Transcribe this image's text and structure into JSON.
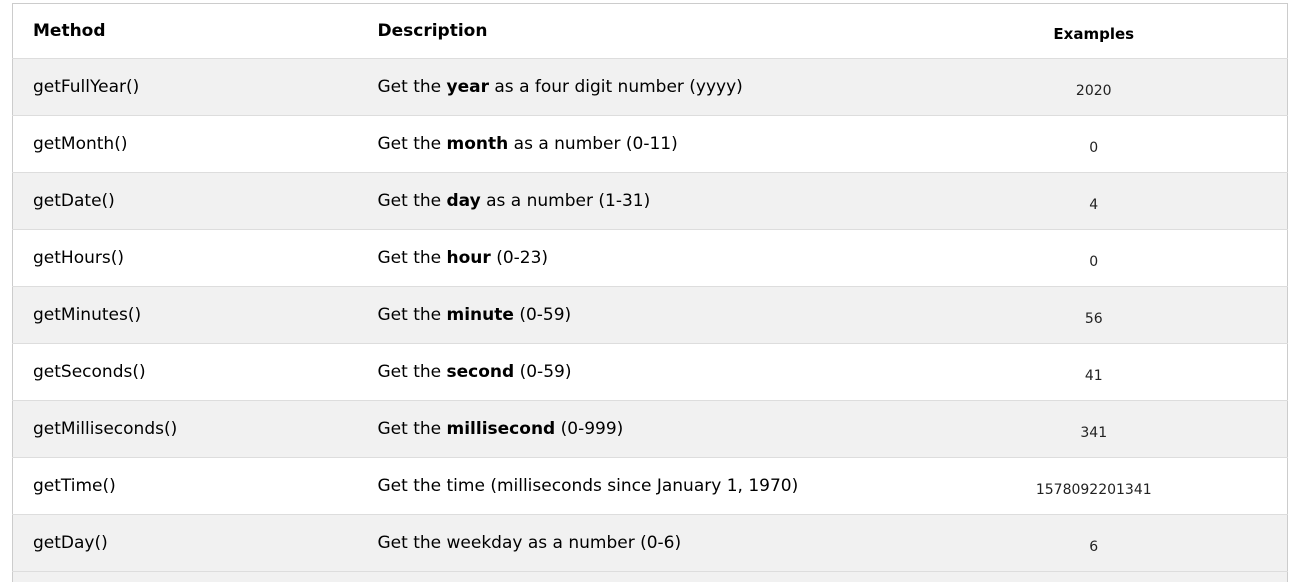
{
  "table": {
    "headers": {
      "method": "Method",
      "description": "Description",
      "examples": "Examples"
    },
    "rows": [
      {
        "method": "getFullYear()",
        "pre": "Get the ",
        "bold": "year",
        "post": " as a four digit number (yyyy)",
        "example": "2020"
      },
      {
        "method": "getMonth()",
        "pre": "Get the ",
        "bold": "month",
        "post": " as a number (0-11)",
        "example": "0"
      },
      {
        "method": "getDate()",
        "pre": "Get the ",
        "bold": "day",
        "post": " as a number (1-31)",
        "example": "4"
      },
      {
        "method": "getHours()",
        "pre": "Get the ",
        "bold": "hour",
        "post": " (0-23)",
        "example": "0"
      },
      {
        "method": "getMinutes()",
        "pre": "Get the ",
        "bold": "minute",
        "post": " (0-59)",
        "example": "56"
      },
      {
        "method": "getSeconds()",
        "pre": "Get the ",
        "bold": "second",
        "post": " (0-59)",
        "example": "41"
      },
      {
        "method": "getMilliseconds()",
        "pre": "Get the ",
        "bold": "millisecond",
        "post": " (0-999)",
        "example": "341"
      },
      {
        "method": "getTime()",
        "pre": "Get the time (milliseconds since January 1, 1970)",
        "bold": "",
        "post": "",
        "example": "1578092201341"
      },
      {
        "method": "getDay()",
        "pre": "Get the weekday as a number (0-6)",
        "bold": "",
        "post": "",
        "example": "6"
      }
    ]
  }
}
